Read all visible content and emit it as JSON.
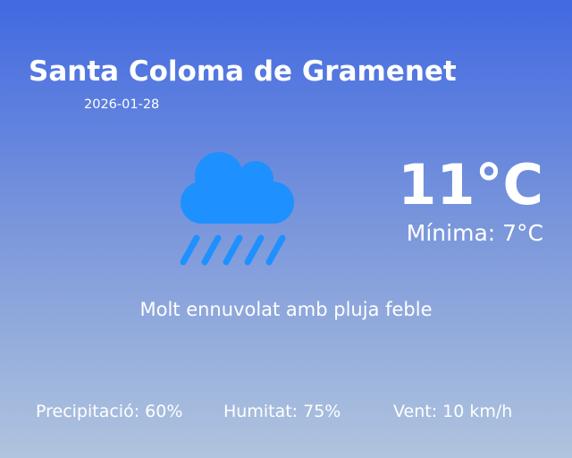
{
  "location": {
    "city": "Santa Coloma de Gramenet",
    "date": "2026-01-28"
  },
  "weather": {
    "icon": "cloud-rain-icon",
    "icon_color": "#1e90ff",
    "temperature": "11°C",
    "minimum": "Mínima: 7°C",
    "description": "Molt ennuvolat amb pluja feble"
  },
  "stats": {
    "precipitation": "Precipitació: 60%",
    "humidity": "Humitat: 75%",
    "wind": "Vent: 10 km/h"
  }
}
